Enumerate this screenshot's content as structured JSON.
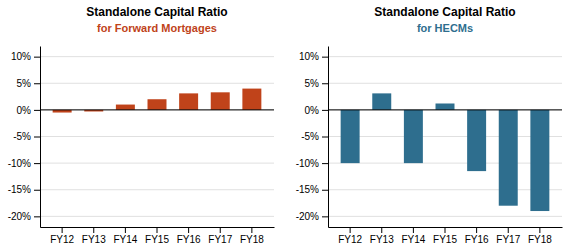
{
  "chart_data": [
    {
      "type": "bar",
      "title": "Standalone Capital Ratio",
      "subtitle": "for Forward Mortgages",
      "categories": [
        "FY12",
        "FY13",
        "FY14",
        "FY15",
        "FY16",
        "FY17",
        "FY18"
      ],
      "values": [
        -0.5,
        -0.3,
        1.0,
        2.0,
        3.1,
        3.3,
        4.0
      ],
      "color": "#C0431A",
      "ylim": [
        -22,
        12
      ],
      "yticks": [
        {
          "value": -20,
          "label": "-20%"
        },
        {
          "value": -15,
          "label": "-15%"
        },
        {
          "value": -10,
          "label": "-10%"
        },
        {
          "value": -5,
          "label": "-5%"
        },
        {
          "value": 0,
          "label": "0%"
        },
        {
          "value": 5,
          "label": "5%"
        },
        {
          "value": 10,
          "label": "10%"
        }
      ],
      "grid": true
    },
    {
      "type": "bar",
      "title": "Standalone Capital Ratio",
      "subtitle": "for HECMs",
      "categories": [
        "FY12",
        "FY13",
        "FY14",
        "FY15",
        "FY16",
        "FY17",
        "FY18"
      ],
      "values": [
        -10.0,
        3.1,
        -10.0,
        1.2,
        -11.5,
        -18.0,
        -19.0
      ],
      "color": "#2E6E8E",
      "ylim": [
        -22,
        12
      ],
      "yticks": [
        {
          "value": -20,
          "label": "-20%"
        },
        {
          "value": -15,
          "label": "-15%"
        },
        {
          "value": -10,
          "label": "-10%"
        },
        {
          "value": -5,
          "label": "-5%"
        },
        {
          "value": 0,
          "label": "0%"
        },
        {
          "value": 5,
          "label": "5%"
        },
        {
          "value": 10,
          "label": "10%"
        }
      ],
      "grid": true
    }
  ]
}
